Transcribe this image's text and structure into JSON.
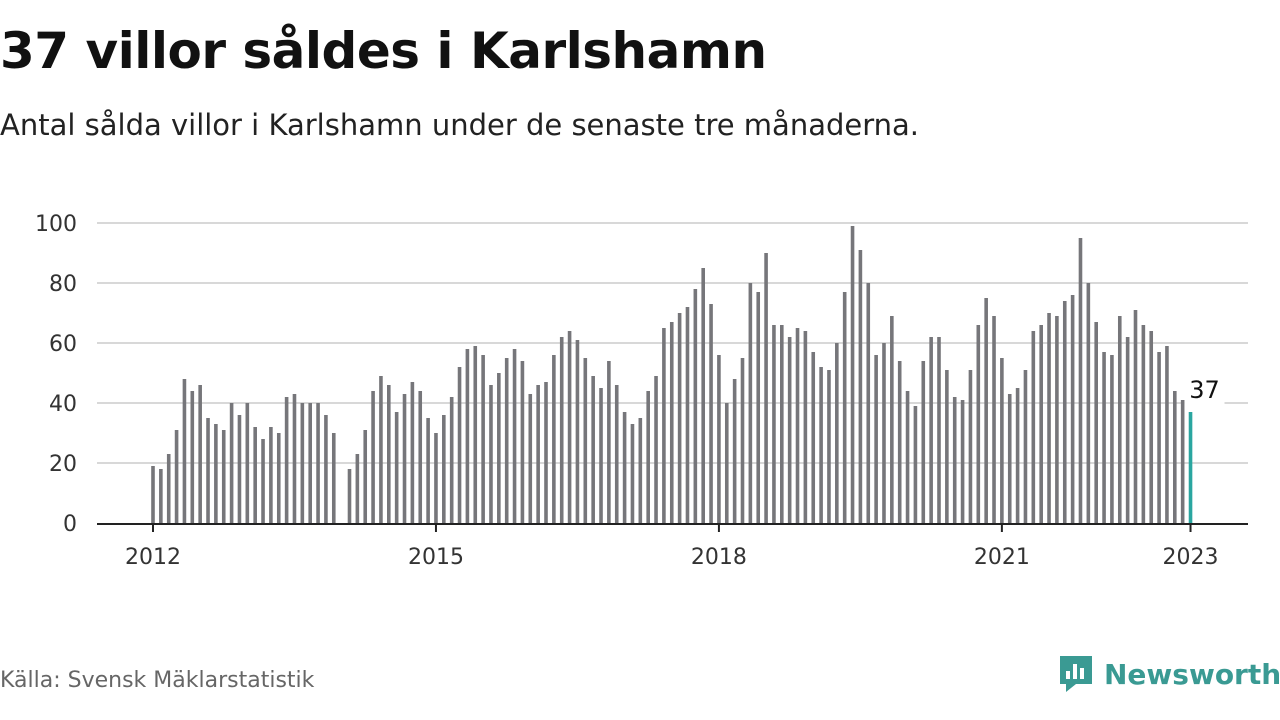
{
  "title": "37 villor såldes i Karlshamn",
  "subtitle": "Antal sålda villor i Karlshamn under de senaste tre månaderna.",
  "source": "Källa: Svensk Mäklarstatistik",
  "brand": {
    "name": "Newsworthy",
    "icon": "newsworthy-logo-icon"
  },
  "colors": {
    "bar": "#76767a",
    "highlight": "#2aa6a0",
    "grid": "#d8d8d8",
    "axis": "#222222",
    "brand": "#3a9a93"
  },
  "chart_data": {
    "type": "bar",
    "ylim": [
      0,
      100
    ],
    "yticks": [
      0,
      20,
      40,
      60,
      80,
      100
    ],
    "xticks": [
      {
        "label": "2012",
        "value": 2012.0
      },
      {
        "label": "2015",
        "value": 2015.0
      },
      {
        "label": "2018",
        "value": 2018.0
      },
      {
        "label": "2021",
        "value": 2021.0
      },
      {
        "label": "2023",
        "value": 2023.0
      }
    ],
    "x_start": "2012-01",
    "highlight_label": "37",
    "grid": true,
    "values": [
      19,
      18,
      23,
      31,
      48,
      44,
      46,
      35,
      33,
      31,
      40,
      36,
      40,
      32,
      28,
      32,
      30,
      42,
      43,
      40,
      40,
      40,
      36,
      30,
      null,
      18,
      23,
      31,
      44,
      49,
      46,
      37,
      43,
      47,
      44,
      35,
      30,
      36,
      42,
      52,
      58,
      59,
      56,
      46,
      50,
      55,
      58,
      54,
      43,
      46,
      47,
      56,
      62,
      64,
      61,
      55,
      49,
      45,
      54,
      46,
      37,
      33,
      35,
      44,
      49,
      65,
      67,
      70,
      72,
      78,
      85,
      73,
      56,
      40,
      48,
      55,
      80,
      77,
      90,
      66,
      66,
      62,
      65,
      64,
      57,
      52,
      51,
      60,
      77,
      99,
      91,
      80,
      56,
      60,
      69,
      54,
      44,
      39,
      54,
      62,
      62,
      51,
      42,
      41,
      51,
      66,
      75,
      69,
      55,
      43,
      45,
      51,
      64,
      66,
      70,
      69,
      74,
      76,
      95,
      80,
      67,
      57,
      56,
      69,
      62,
      71,
      66,
      64,
      57,
      59,
      44,
      41,
      37
    ]
  }
}
